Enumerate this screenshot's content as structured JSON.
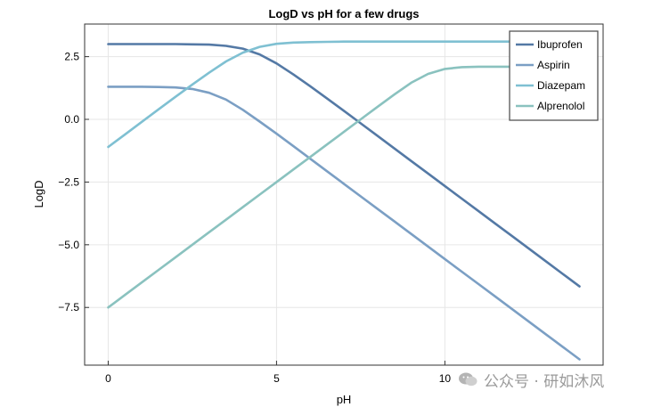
{
  "chart_data": {
    "type": "line",
    "title": "LogD vs pH for a few drugs",
    "xlabel": "pH",
    "ylabel": "LogD",
    "xlim": [
      -0.7,
      14.7
    ],
    "ylim": [
      -9.8,
      3.8
    ],
    "xticks": [
      0,
      5,
      10
    ],
    "xtick_labels": [
      "0",
      "5",
      "10"
    ],
    "yticks": [
      2.5,
      0.0,
      -2.5,
      -5.0,
      -7.5
    ],
    "ytick_labels": [
      "2.5",
      "0.0",
      "−2.5",
      "−5.0",
      "−7.5"
    ],
    "grid": true,
    "legend_position": "top-right",
    "x": [
      0,
      0.5,
      1,
      1.5,
      2,
      2.5,
      3,
      3.5,
      4,
      4.5,
      5,
      5.5,
      6,
      6.5,
      7,
      7.5,
      8,
      8.5,
      9,
      9.5,
      10,
      10.5,
      11,
      11.5,
      12,
      12.5,
      13,
      13.5,
      14
    ],
    "series": [
      {
        "name": "Ibuprofen",
        "color": "#5479a5",
        "values": [
          3.0,
          3.0,
          3.0,
          3.0,
          3.0,
          2.99,
          2.98,
          2.93,
          2.82,
          2.59,
          2.23,
          1.79,
          1.32,
          0.83,
          0.34,
          -0.16,
          -0.66,
          -1.16,
          -1.66,
          -2.16,
          -2.66,
          -3.16,
          -3.66,
          -4.16,
          -4.66,
          -5.16,
          -5.66,
          -6.16,
          -6.66
        ]
      },
      {
        "name": "Aspirin",
        "color": "#7b9fc4",
        "values": [
          1.3,
          1.3,
          1.3,
          1.29,
          1.27,
          1.21,
          1.06,
          0.79,
          0.38,
          -0.09,
          -0.57,
          -1.07,
          -1.57,
          -2.07,
          -2.57,
          -3.07,
          -3.57,
          -4.07,
          -4.57,
          -5.07,
          -5.57,
          -6.07,
          -6.57,
          -7.07,
          -7.57,
          -8.07,
          -8.57,
          -9.07,
          -9.57
        ]
      },
      {
        "name": "Diazepam",
        "color": "#7fc0d2",
        "values": [
          -1.1,
          -0.6,
          -0.1,
          0.4,
          0.9,
          1.39,
          1.86,
          2.31,
          2.66,
          2.89,
          3.01,
          3.06,
          3.08,
          3.09,
          3.1,
          3.1,
          3.1,
          3.1,
          3.1,
          3.1,
          3.1,
          3.1,
          3.1,
          3.1,
          3.1,
          3.1,
          3.1,
          3.1,
          3.1
        ]
      },
      {
        "name": "Alprenolol",
        "color": "#8ac2bf",
        "values": [
          -7.5,
          -7.0,
          -6.5,
          -6.0,
          -5.5,
          -5.0,
          -4.5,
          -4.0,
          -3.5,
          -3.0,
          -2.5,
          -2.0,
          -1.5,
          -1.0,
          -0.5,
          0.0,
          0.5,
          0.99,
          1.46,
          1.81,
          2.01,
          2.08,
          2.1,
          2.1,
          2.1,
          2.1,
          2.1,
          2.1,
          2.1
        ]
      }
    ]
  },
  "watermark": {
    "text": "公众号 · 研如沐风",
    "icon": "wechat-icon"
  }
}
